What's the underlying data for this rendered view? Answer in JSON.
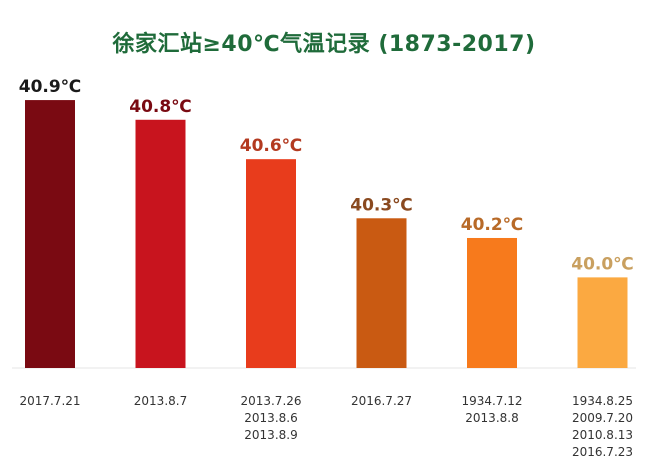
{
  "title": "徐家汇站≥40℃气温记录 (1873-2017)",
  "chart_data": {
    "type": "bar",
    "title": "徐家汇站≥40℃气温记录 (1873-2017)",
    "unit": "℃",
    "categories": [
      [
        "2017.7.21"
      ],
      [
        "2013.8.7"
      ],
      [
        "2013.7.26",
        "2013.8.6",
        "2013.8.9"
      ],
      [
        "2016.7.27"
      ],
      [
        "1934.7.12",
        "2013.8.8"
      ],
      [
        "1934.8.25",
        "2009.7.20",
        "2010.8.13",
        "2016.7.23"
      ]
    ],
    "values": [
      40.9,
      40.8,
      40.6,
      40.3,
      40.2,
      40.0
    ],
    "value_labels": [
      "40.9℃",
      "40.8℃",
      "40.6℃",
      "40.3℃",
      "40.2℃",
      "40.0℃"
    ],
    "bar_colors": [
      "#7a0a12",
      "#c8141e",
      "#e83c1c",
      "#c95a12",
      "#f77a1c",
      "#fba941"
    ],
    "label_colors": [
      "#1a1a1a",
      "#7a0a12",
      "#b33a20",
      "#8a4a20",
      "#b86a28",
      "#c9a060"
    ],
    "grid": false,
    "legend": "none"
  }
}
